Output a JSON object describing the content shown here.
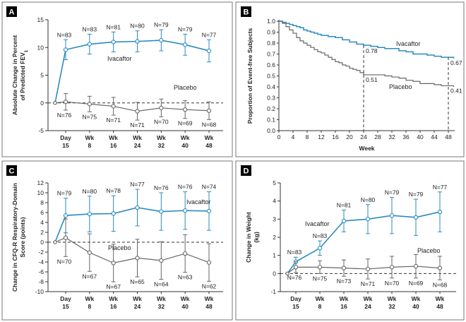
{
  "chart_data": [
    {
      "panel": "A",
      "type": "line",
      "ylabel": "Absolute Change in Percent of Predicted FEV",
      "ylabel_sub": "1",
      "ylim": [
        -5,
        15
      ],
      "yticks": [
        -5,
        0,
        5,
        10,
        15
      ],
      "categories": [
        {
          "top": "Day",
          "bottom": "15"
        },
        {
          "top": "Wk",
          "bottom": "8"
        },
        {
          "top": "Wk",
          "bottom": "16"
        },
        {
          "top": "Wk",
          "bottom": "24"
        },
        {
          "top": "Wk",
          "bottom": "32"
        },
        {
          "top": "Wk",
          "bottom": "40"
        },
        {
          "top": "Wk",
          "bottom": "48"
        }
      ],
      "series": [
        {
          "name": "Ivacaftor",
          "color": "#2b8bbf",
          "values": [
            9.6,
            10.6,
            11.0,
            11.1,
            11.3,
            10.5,
            9.4
          ],
          "err": [
            1.8,
            1.8,
            1.8,
            1.9,
            1.9,
            1.9,
            2.0
          ],
          "n": [
            "N=83",
            "N=83",
            "N=81",
            "N=80",
            "N=79",
            "N=79",
            "N=77"
          ]
        },
        {
          "name": "Placebo",
          "color": "#666666",
          "values": [
            0.2,
            -0.2,
            -0.6,
            -1.5,
            -0.9,
            -1.2,
            -1.4
          ],
          "err": [
            1.5,
            1.4,
            1.6,
            1.6,
            1.6,
            1.6,
            1.6
          ],
          "n": [
            "N=76",
            "N=75",
            "N=71",
            "N=71",
            "N=70",
            "N=69",
            "N=68"
          ]
        }
      ]
    },
    {
      "panel": "B",
      "type": "line",
      "xlabel": "Week",
      "ylabel": "Proportion of Event-free Subjects",
      "xlim": [
        0,
        48
      ],
      "ylim": [
        0,
        1
      ],
      "xticks": [
        0,
        4,
        8,
        12,
        16,
        20,
        24,
        28,
        32,
        36,
        40,
        44,
        48
      ],
      "yticks": [
        0.0,
        0.1,
        0.2,
        0.3,
        0.4,
        0.5,
        0.6,
        0.7,
        0.8,
        0.9,
        1.0
      ],
      "series": [
        {
          "name": "Ivacaftor",
          "color": "#2b8bbf",
          "x": [
            0,
            1,
            2,
            3,
            4,
            5,
            6,
            7,
            8,
            9,
            10,
            11,
            12,
            14,
            16,
            18,
            20,
            22,
            24,
            26,
            28,
            30,
            32,
            34,
            36,
            38,
            40,
            42,
            44,
            46,
            48,
            49.5
          ],
          "y": [
            1.0,
            0.99,
            0.98,
            0.97,
            0.96,
            0.95,
            0.94,
            0.92,
            0.91,
            0.9,
            0.89,
            0.88,
            0.87,
            0.86,
            0.85,
            0.83,
            0.81,
            0.79,
            0.78,
            0.77,
            0.76,
            0.75,
            0.75,
            0.73,
            0.72,
            0.7,
            0.7,
            0.69,
            0.68,
            0.67,
            0.67,
            0.66
          ]
        },
        {
          "name": "Placebo",
          "color": "#666666",
          "x": [
            0,
            1,
            2,
            3,
            4,
            5,
            6,
            7,
            8,
            9,
            10,
            11,
            12,
            13,
            14,
            15,
            16,
            17,
            18,
            19,
            20,
            21,
            22,
            23,
            24,
            26,
            28,
            30,
            32,
            34,
            36,
            38,
            40,
            42,
            44,
            46,
            48,
            49.5
          ],
          "y": [
            1.0,
            0.98,
            0.95,
            0.92,
            0.89,
            0.85,
            0.82,
            0.8,
            0.78,
            0.76,
            0.74,
            0.72,
            0.71,
            0.69,
            0.67,
            0.65,
            0.63,
            0.62,
            0.6,
            0.59,
            0.57,
            0.56,
            0.55,
            0.53,
            0.51,
            0.51,
            0.51,
            0.5,
            0.49,
            0.48,
            0.46,
            0.45,
            0.43,
            0.43,
            0.42,
            0.41,
            0.41,
            0.4
          ]
        }
      ],
      "annotations": [
        {
          "text": "0.78",
          "x": 24,
          "y": 0.78
        },
        {
          "text": "0.51",
          "x": 24,
          "y": 0.51
        },
        {
          "text": "0.67",
          "x": 48,
          "y": 0.67
        },
        {
          "text": "0.41",
          "x": 48,
          "y": 0.41
        }
      ]
    },
    {
      "panel": "C",
      "type": "line",
      "ylabel": "Change in CFQ-R Respiratory-Domain Score (points)",
      "ylim": [
        -10,
        12
      ],
      "yticks": [
        -10,
        -8,
        -6,
        -4,
        -2,
        0,
        2,
        4,
        6,
        8,
        10,
        12
      ],
      "categories": [
        {
          "top": "Day",
          "bottom": "15"
        },
        {
          "top": "Wk",
          "bottom": "8"
        },
        {
          "top": "Wk",
          "bottom": "16"
        },
        {
          "top": "Wk",
          "bottom": "24"
        },
        {
          "top": "Wk",
          "bottom": "32"
        },
        {
          "top": "Wk",
          "bottom": "40"
        },
        {
          "top": "Wk",
          "bottom": "48"
        }
      ],
      "series": [
        {
          "name": "Ivacaftor",
          "color": "#2b8bbf",
          "values": [
            5.4,
            5.7,
            5.8,
            7.0,
            6.2,
            6.4,
            6.3
          ],
          "err": [
            3.5,
            3.6,
            3.6,
            3.7,
            3.8,
            3.8,
            3.9
          ],
          "n": [
            "N=79",
            "N=80",
            "N=78",
            "N=77",
            "N=76",
            "N=76",
            "N=74"
          ]
        },
        {
          "name": "Placebo",
          "color": "#666666",
          "values": [
            0.9,
            -2.1,
            -4.2,
            -3.2,
            -3.7,
            -2.3,
            -4.1
          ],
          "err": [
            3.8,
            3.8,
            3.8,
            3.8,
            3.8,
            3.8,
            3.8
          ],
          "n": [
            "N=70",
            "N=67",
            "N=67",
            "N=65",
            "N=64",
            "N=63",
            "N=62"
          ]
        }
      ]
    },
    {
      "panel": "D",
      "type": "line",
      "ylabel": "Change in Weight",
      "ylabel2": "(kg)",
      "ylim": [
        -1,
        5
      ],
      "yticks": [
        -1,
        0,
        1,
        2,
        3,
        4,
        5
      ],
      "categories": [
        {
          "top": "Day",
          "bottom": "15"
        },
        {
          "top": "Wk",
          "bottom": "8"
        },
        {
          "top": "Wk",
          "bottom": "16"
        },
        {
          "top": "Wk",
          "bottom": "24"
        },
        {
          "top": "Wk",
          "bottom": "32"
        },
        {
          "top": "Wk",
          "bottom": "40"
        },
        {
          "top": "Wk",
          "bottom": "48"
        }
      ],
      "series": [
        {
          "name": "Ivacaftor",
          "color": "#2b8bbf",
          "values": [
            0.65,
            1.4,
            2.9,
            3.0,
            3.2,
            3.1,
            3.4
          ],
          "err": [
            0.25,
            0.4,
            0.6,
            0.8,
            1.0,
            1.0,
            1.1
          ],
          "n": [
            "N=83",
            "N=83",
            "N=81",
            "N=80",
            "N=79",
            "N=79",
            "N=77"
          ]
        },
        {
          "name": "Placebo",
          "color": "#666666",
          "values": [
            0.35,
            0.35,
            0.3,
            0.25,
            0.35,
            0.4,
            0.3
          ],
          "err": [
            0.3,
            0.35,
            0.45,
            0.55,
            0.6,
            0.65,
            0.65
          ],
          "n": [
            "N=76",
            "N=75",
            "N=73",
            "N=71",
            "N=70",
            "N=69",
            "N=68"
          ]
        }
      ]
    }
  ]
}
